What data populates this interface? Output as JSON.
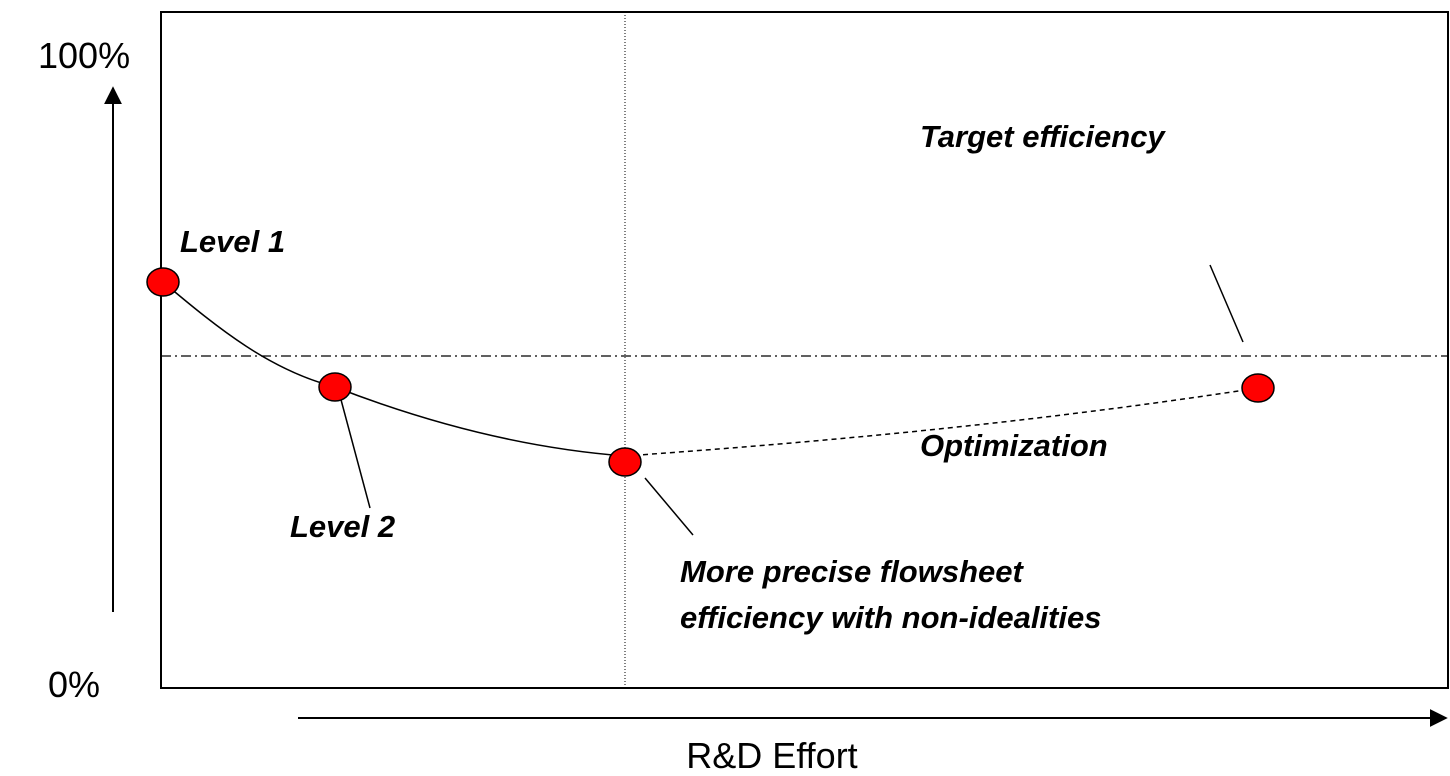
{
  "axes": {
    "y_top": "100%",
    "y_bottom": "0%",
    "x_label": "R&D Effort"
  },
  "annotations": {
    "level1": "Level 1",
    "level2": "Level 2",
    "flowsheet": [
      "More precise flowsheet",
      "efficiency with non-idealities"
    ],
    "target": "Target efficiency",
    "optimization": "Optimization"
  }
}
